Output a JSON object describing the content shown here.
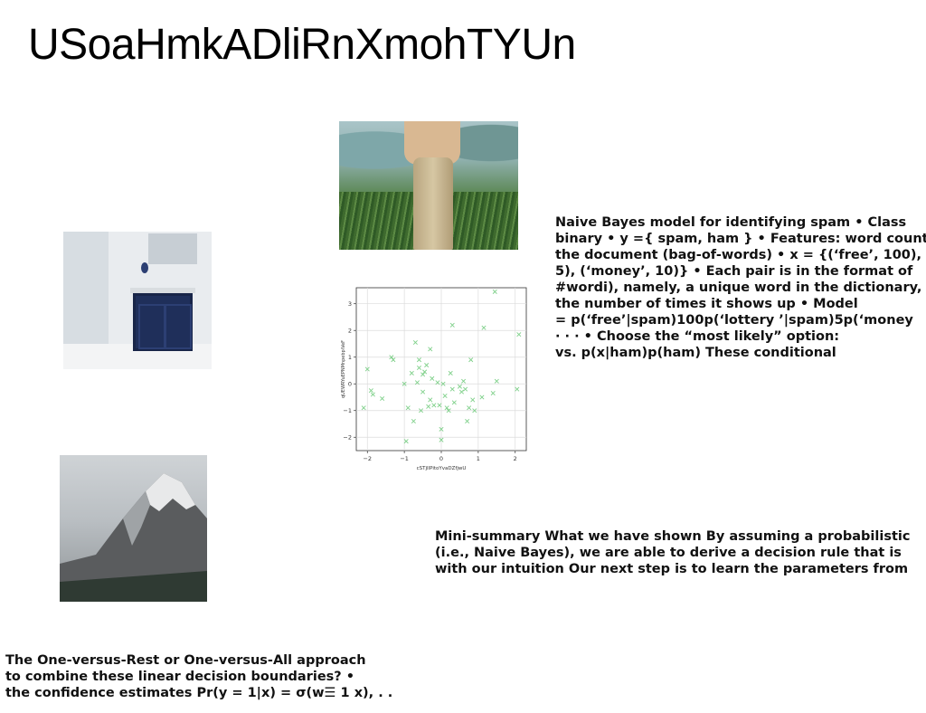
{
  "page": {
    "title": "USoaHmkADliRnXmohTYUn"
  },
  "blocks": {
    "naive_bayes": [
      "Naive Bayes model for identifying spam • Class",
      "binary • y ={ spam, ham } • Features: word counts",
      "the document (bag-of-words) • x = {(‘free’, 100),",
      "5), (‘money’, 10)} • Each pair is in the format of",
      "#wordi), namely, a unique word in the dictionary,",
      "the number of times it shows up • Model",
      "= p(‘free’|spam)100p(‘lottery ’|spam)5p(‘money",
      "· · · • Choose the “most likely” option:",
      "vs. p(x|ham)p(ham) These conditional"
    ],
    "mini_summary": [
      "Mini-summary What we have shown By assuming a probabilistic",
      "(i.e., Naive Bayes), we are able to derive a decision rule that is",
      "with our intuition Our next step is to learn the parameters from"
    ],
    "one_vs_rest": [
      "The One-versus-Rest or One-versus-All approach",
      "to combine these linear decision boundaries? •",
      "the confidence estimates Pr(y = 1|x) = σ(w☰ 1 x), . ."
    ]
  },
  "images": {
    "field": "person-in-field-photo",
    "bathroom": "bathroom-vanity-photo",
    "mountain": "mountain-photo"
  },
  "chart_data": {
    "type": "scatter",
    "xlabel": "cSTjIlPitoYvaDZfjwU",
    "ylabel": "qUEWRYuEPNMnpebpiVeF",
    "xlim": [
      -2.3,
      2.3
    ],
    "ylim": [
      -2.5,
      3.6
    ],
    "xticks": [
      -2,
      -1,
      0,
      1,
      2
    ],
    "yticks": [
      -2,
      -1,
      0,
      1,
      2,
      3
    ],
    "grid": true,
    "marker": "x",
    "color": "#7fd08a",
    "x": [
      -2.1,
      -2.0,
      -1.9,
      -1.85,
      -1.6,
      -1.35,
      -1.3,
      -1.0,
      -0.95,
      -0.9,
      -0.8,
      -0.75,
      -0.7,
      -0.65,
      -0.6,
      -0.6,
      -0.55,
      -0.5,
      -0.5,
      -0.45,
      -0.4,
      -0.35,
      -0.3,
      -0.3,
      -0.25,
      -0.2,
      -0.1,
      -0.05,
      0.0,
      0.0,
      0.05,
      0.1,
      0.15,
      0.2,
      0.25,
      0.3,
      0.3,
      0.35,
      0.5,
      0.55,
      0.6,
      0.65,
      0.7,
      0.75,
      0.8,
      0.85,
      0.9,
      1.1,
      1.15,
      1.4,
      1.45,
      1.5,
      2.05,
      2.1
    ],
    "y": [
      -0.9,
      0.55,
      -0.25,
      -0.4,
      -0.55,
      1.0,
      0.9,
      0.0,
      -2.15,
      -0.9,
      0.4,
      -1.4,
      1.55,
      0.05,
      0.9,
      0.6,
      -1.0,
      0.35,
      -0.3,
      0.45,
      0.7,
      -0.85,
      1.3,
      -0.6,
      0.2,
      -0.8,
      0.05,
      -0.8,
      -1.7,
      -2.1,
      0.0,
      -0.45,
      -0.9,
      -1.0,
      0.4,
      2.2,
      -0.2,
      -0.7,
      -0.1,
      -0.3,
      0.1,
      -0.2,
      -1.4,
      -0.9,
      0.9,
      -0.6,
      -1.0,
      -0.5,
      2.1,
      -0.35,
      3.45,
      0.1,
      -0.2,
      1.85
    ]
  }
}
